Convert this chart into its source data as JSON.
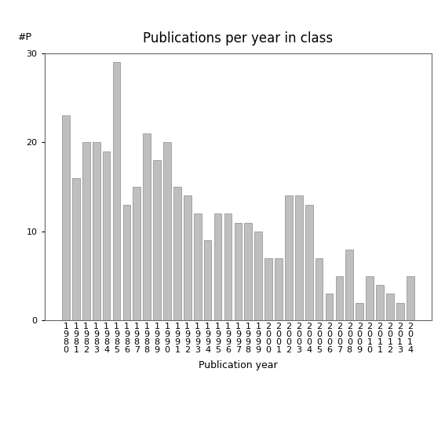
{
  "title": "Publications per year in class",
  "xlabel": "Publication year",
  "ylabel": "#P",
  "years": [
    "1980",
    "1981",
    "1982",
    "1983",
    "1984",
    "1985",
    "1986",
    "1987",
    "1988",
    "1989",
    "1990",
    "1991",
    "1992",
    "1993",
    "1994",
    "1995",
    "1996",
    "1997",
    "1998",
    "1999",
    "2000",
    "2001",
    "2002",
    "2003",
    "2004",
    "2005",
    "2006",
    "2007",
    "2008",
    "2009",
    "2010",
    "2011",
    "2012",
    "2013",
    "2014"
  ],
  "values": [
    23,
    16,
    20,
    20,
    19,
    29,
    13,
    15,
    21,
    18,
    20,
    15,
    14,
    12,
    9,
    12,
    12,
    11,
    11,
    10,
    7,
    7,
    14,
    14,
    13,
    7,
    3,
    5,
    8,
    2,
    5,
    4,
    3,
    2,
    5
  ],
  "bar_color": "#c0bebe",
  "bar_edge_color": "#999999",
  "ylim": [
    0,
    30
  ],
  "yticks": [
    0,
    10,
    20,
    30
  ],
  "background_color": "#ffffff",
  "figsize": [
    5.67,
    5.67
  ],
  "dpi": 100,
  "title_fontsize": 12,
  "axis_fontsize": 9,
  "tick_fontsize": 8,
  "xlabel_fontsize": 9
}
